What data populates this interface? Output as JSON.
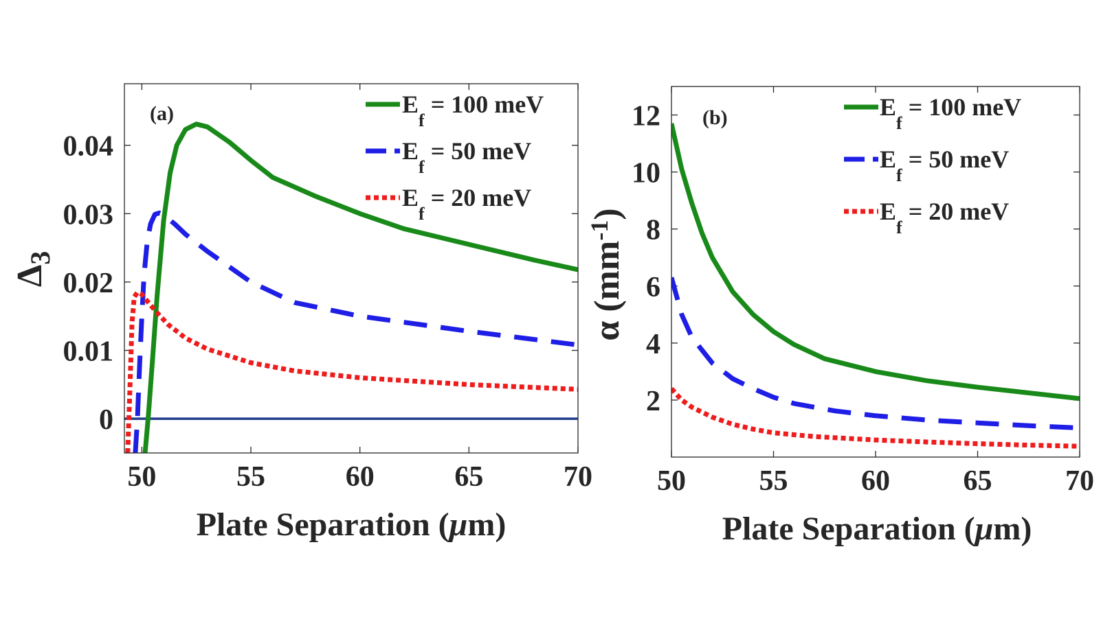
{
  "chart_data": [
    {
      "type": "line",
      "panel_label": "(a)",
      "xlabel_main": "Plate Separation (",
      "xlabel_mu": "μ",
      "xlabel_end": "m)",
      "ylabel_main": "Δ",
      "ylabel_sub": "3",
      "xlim": [
        49.2,
        70
      ],
      "ylim": [
        -0.005,
        0.049
      ],
      "xticks": [
        50,
        55,
        60,
        65,
        70
      ],
      "xtick_labels": [
        "50",
        "55",
        "60",
        "65",
        "70"
      ],
      "yticks": [
        0,
        0.01,
        0.02,
        0.03,
        0.04
      ],
      "ytick_labels": [
        "0",
        "0.01",
        "0.02",
        "0.03",
        "0.04"
      ],
      "legend_position": "top-right",
      "reference_line": {
        "y": 0,
        "color": "#1f3c8c"
      },
      "series": [
        {
          "name": "E_f = 100 meV",
          "legend_main": "E",
          "legend_sub": "f",
          "legend_rest": " = 100 meV",
          "color": "#198a19",
          "style": "solid",
          "x": [
            50.15,
            50.3,
            50.5,
            50.7,
            51.0,
            51.3,
            51.6,
            52.0,
            52.5,
            53.0,
            54.0,
            55.0,
            56.0,
            58.0,
            60.0,
            62.0,
            65.0,
            68.0,
            70.0
          ],
          "y": [
            -0.005,
            0.0005,
            0.009,
            0.018,
            0.029,
            0.036,
            0.04,
            0.0423,
            0.0431,
            0.0427,
            0.0405,
            0.0378,
            0.0353,
            0.0325,
            0.03,
            0.0278,
            0.0255,
            0.0232,
            0.0218
          ]
        },
        {
          "name": "E_f = 50 meV",
          "legend_main": "E",
          "legend_sub": "f",
          "legend_rest": " = 50 meV",
          "color": "#1e1ee6",
          "style": "dashed",
          "x": [
            49.7,
            49.8,
            49.9,
            50.0,
            50.1,
            50.25,
            50.4,
            50.6,
            50.8,
            51.0,
            51.5,
            52.0,
            53.0,
            55.0,
            57.0,
            60.0,
            65.0,
            70.0
          ],
          "y": [
            -0.005,
            0.0,
            0.008,
            0.015,
            0.021,
            0.026,
            0.0285,
            0.0299,
            0.0301,
            0.0298,
            0.0285,
            0.027,
            0.0245,
            0.02,
            0.017,
            0.015,
            0.0128,
            0.0108
          ]
        },
        {
          "name": "E_f = 20 meV",
          "legend_main": "E",
          "legend_sub": "f",
          "legend_rest": " = 20 meV",
          "color": "#ee1c1c",
          "style": "dotted",
          "x": [
            49.35,
            49.45,
            49.55,
            49.65,
            49.8,
            50.0,
            50.3,
            50.7,
            51.2,
            52.0,
            53.0,
            55.0,
            57.0,
            60.0,
            65.0,
            70.0
          ],
          "y": [
            -0.005,
            0.004,
            0.014,
            0.0178,
            0.0185,
            0.0182,
            0.017,
            0.0155,
            0.0138,
            0.0118,
            0.0102,
            0.0082,
            0.007,
            0.006,
            0.005,
            0.0043
          ]
        }
      ]
    },
    {
      "type": "line",
      "panel_label": "(b)",
      "xlabel_main": "Plate Separation (",
      "xlabel_mu": "μ",
      "xlabel_end": "m)",
      "ylabel_main": "α (mm",
      "ylabel_sup": "-1",
      "ylabel_end": ")",
      "xlim": [
        50,
        70
      ],
      "ylim": [
        0,
        13
      ],
      "xticks": [
        50,
        55,
        60,
        65,
        70
      ],
      "xtick_labels": [
        "50",
        "55",
        "60",
        "65",
        "70"
      ],
      "yticks": [
        2,
        4,
        6,
        8,
        10,
        12
      ],
      "ytick_labels": [
        "2",
        "4",
        "6",
        "8",
        "10",
        "12"
      ],
      "legend_position": "top-right",
      "series": [
        {
          "name": "E_f = 100 meV",
          "legend_main": "E",
          "legend_sub": "f",
          "legend_rest": " = 100 meV",
          "color": "#198a19",
          "style": "solid",
          "x": [
            50.0,
            50.5,
            51.0,
            51.5,
            52.0,
            53.0,
            54.0,
            55.0,
            56.0,
            57.5,
            60.0,
            62.5,
            65.0,
            67.5,
            70.0
          ],
          "y": [
            11.7,
            10.1,
            8.9,
            7.85,
            7.0,
            5.8,
            5.0,
            4.4,
            3.95,
            3.45,
            3.0,
            2.68,
            2.45,
            2.25,
            2.05
          ]
        },
        {
          "name": "E_f = 50 meV",
          "legend_main": "E",
          "legend_sub": "f",
          "legend_rest": " = 50 meV",
          "color": "#1e1ee6",
          "style": "dashed",
          "x": [
            50.0,
            50.5,
            51.0,
            52.0,
            53.0,
            54.0,
            55.0,
            56.0,
            58.0,
            60.0,
            62.5,
            65.0,
            67.5,
            70.0
          ],
          "y": [
            6.3,
            5.0,
            4.2,
            3.3,
            2.75,
            2.4,
            2.1,
            1.88,
            1.62,
            1.45,
            1.3,
            1.2,
            1.1,
            1.02
          ]
        },
        {
          "name": "E_f = 20 meV",
          "legend_main": "E",
          "legend_sub": "f",
          "legend_rest": " = 20 meV",
          "color": "#ee1c1c",
          "style": "dotted",
          "x": [
            50.0,
            50.5,
            51.0,
            52.0,
            53.0,
            54.0,
            55.0,
            57.0,
            60.0,
            62.5,
            65.0,
            67.5,
            70.0
          ],
          "y": [
            2.4,
            2.0,
            1.75,
            1.4,
            1.15,
            0.98,
            0.85,
            0.72,
            0.6,
            0.53,
            0.47,
            0.42,
            0.38
          ]
        }
      ]
    }
  ]
}
